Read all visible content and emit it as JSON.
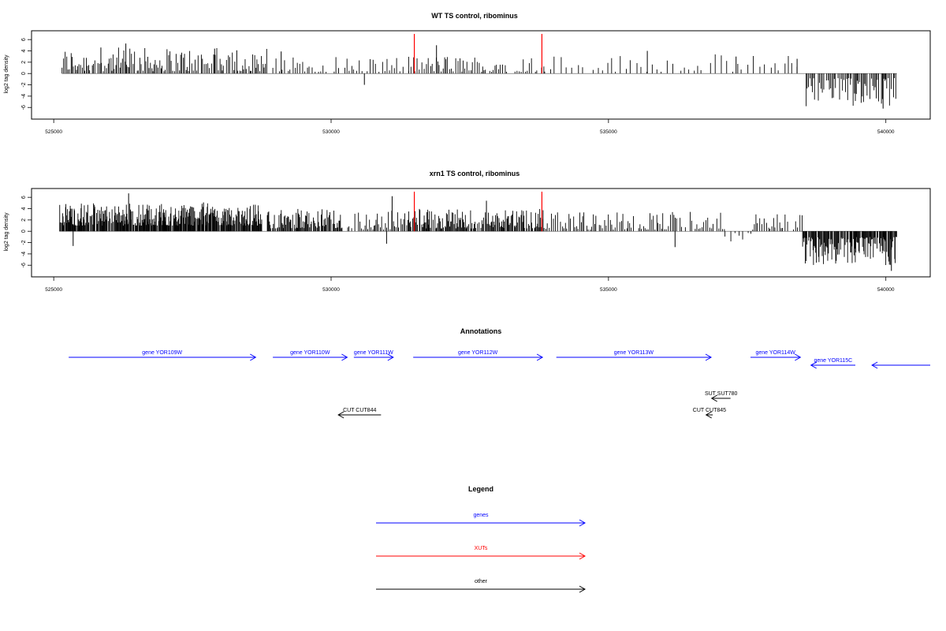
{
  "colors": {
    "genes": "#0000ff",
    "xuts": "#ff0000",
    "other": "#000000",
    "bars": "#000000",
    "axis": "#000000"
  },
  "chart_data": [
    {
      "type": "bar",
      "title": "WT TS control, ribominus",
      "ylabel": "log2 tag density",
      "xlim": [
        524600,
        540800
      ],
      "ylim": [
        -7.5,
        7
      ],
      "yticks": [
        -6,
        -4,
        -2,
        0,
        2,
        4,
        6
      ],
      "xticks": [
        525000,
        530000,
        535000,
        540000
      ],
      "xtick_labels": [
        "525000",
        "530000",
        "535000",
        "540000"
      ],
      "xut_markers": [
        531500,
        533800
      ],
      "density": {
        "segments": [
          {
            "from": 525150,
            "to": 528850,
            "min": 0.4,
            "max": 4.6,
            "sign": 1,
            "step": 25
          },
          {
            "from": 528950,
            "to": 530600,
            "min": 0.3,
            "max": 3.0,
            "sign": 1,
            "step": 45
          },
          {
            "from": 530600,
            "to": 530620,
            "min": 1.5,
            "max": 2.0,
            "sign": -1,
            "step": 20
          },
          {
            "from": 530650,
            "to": 531400,
            "min": 0.3,
            "max": 3.0,
            "sign": 1,
            "step": 50
          },
          {
            "from": 531400,
            "to": 533850,
            "min": 0.3,
            "max": 3.2,
            "sign": 1,
            "step": 35
          },
          {
            "from": 533850,
            "to": 538450,
            "min": 0.3,
            "max": 3.4,
            "sign": 1,
            "step": 90
          },
          {
            "from": 538550,
            "to": 540200,
            "min": 0.8,
            "max": 6.0,
            "sign": -1,
            "step": 22
          }
        ],
        "peaks": [
          [
            525850,
            4.6
          ],
          [
            526300,
            5.3
          ],
          [
            527900,
            4.4
          ],
          [
            528300,
            4.1
          ],
          [
            529100,
            3.9
          ],
          [
            531900,
            5.0
          ],
          [
            535700,
            4.0
          ],
          [
            537300,
            3.0
          ],
          [
            538400,
            2.6
          ],
          [
            530600,
            -2.0
          ],
          [
            539950,
            -6.2
          ]
        ]
      }
    },
    {
      "type": "bar",
      "title": "xrn1 TS control, ribominus",
      "ylabel": "log2 tag density",
      "xlim": [
        524600,
        540800
      ],
      "ylim": [
        -7.5,
        7
      ],
      "yticks": [
        -6,
        -4,
        -2,
        0,
        2,
        4,
        6
      ],
      "xticks": [
        525000,
        530000,
        535000,
        540000
      ],
      "xtick_labels": [
        "525000",
        "530000",
        "535000",
        "540000"
      ],
      "xut_markers": [
        531500,
        533800
      ],
      "density": {
        "segments": [
          {
            "from": 525100,
            "to": 528750,
            "min": 1.0,
            "max": 5.0,
            "sign": 1,
            "step": 10
          },
          {
            "from": 528850,
            "to": 530200,
            "min": 0.5,
            "max": 4.0,
            "sign": 1,
            "step": 15
          },
          {
            "from": 530300,
            "to": 531400,
            "min": 0.3,
            "max": 3.8,
            "sign": 1,
            "step": 25
          },
          {
            "from": 531400,
            "to": 533850,
            "min": 0.5,
            "max": 4.0,
            "sign": 1,
            "step": 14
          },
          {
            "from": 533850,
            "to": 537100,
            "min": 0.3,
            "max": 3.6,
            "sign": 1,
            "step": 30
          },
          {
            "from": 537100,
            "to": 537600,
            "min": 0.3,
            "max": 1.8,
            "sign": -1,
            "step": 60
          },
          {
            "from": 537600,
            "to": 538500,
            "min": 0.3,
            "max": 3.0,
            "sign": 1,
            "step": 35
          },
          {
            "from": 538500,
            "to": 540200,
            "min": 1.0,
            "max": 6.0,
            "sign": -1,
            "step": 12
          }
        ],
        "peaks": [
          [
            526350,
            6.7
          ],
          [
            527700,
            5.1
          ],
          [
            531100,
            6.2
          ],
          [
            532800,
            5.4
          ],
          [
            525350,
            -2.6
          ],
          [
            531000,
            -2.2
          ],
          [
            536200,
            -2.8
          ],
          [
            540100,
            -7.0
          ]
        ]
      }
    }
  ],
  "annotations": {
    "title": "Annotations",
    "xlim": [
      524600,
      540800
    ],
    "features": [
      {
        "label": "gene YOR109W",
        "kind": "genes",
        "start": 525270,
        "end": 528640,
        "strand": "+",
        "row": 1
      },
      {
        "label": "gene YOR110W",
        "kind": "genes",
        "start": 528950,
        "end": 530290,
        "strand": "+",
        "row": 1
      },
      {
        "label": "gene YOR111W",
        "kind": "genes",
        "start": 530410,
        "end": 531120,
        "strand": "+",
        "row": 1
      },
      {
        "label": "gene YOR112W",
        "kind": "genes",
        "start": 531480,
        "end": 533810,
        "strand": "+",
        "row": 1
      },
      {
        "label": "gene YOR113W",
        "kind": "genes",
        "start": 534060,
        "end": 536850,
        "strand": "+",
        "row": 1
      },
      {
        "label": "gene YOR114W",
        "kind": "genes",
        "start": 537560,
        "end": 538460,
        "strand": "+",
        "row": 1
      },
      {
        "label": "gene YOR115C",
        "kind": "genes",
        "start": 538650,
        "end": 539450,
        "strand": "-",
        "row": 2
      },
      {
        "label": "",
        "kind": "genes",
        "start": 539750,
        "end": 540800,
        "strand": "-",
        "row": 2
      },
      {
        "label": "SUT SUT780",
        "kind": "other",
        "start": 536860,
        "end": 537200,
        "strand": "-",
        "row": 3
      },
      {
        "label": "CUT CUT844",
        "kind": "other",
        "start": 530130,
        "end": 530900,
        "strand": "-",
        "row": 4
      },
      {
        "label": "CUT CUT845",
        "kind": "other",
        "start": 536760,
        "end": 536880,
        "strand": "-",
        "row": 4
      }
    ]
  },
  "legend": {
    "title": "Legend",
    "items": [
      {
        "label": "genes",
        "kind": "genes"
      },
      {
        "label": "XUTs",
        "kind": "xuts"
      },
      {
        "label": "other",
        "kind": "other"
      }
    ]
  }
}
